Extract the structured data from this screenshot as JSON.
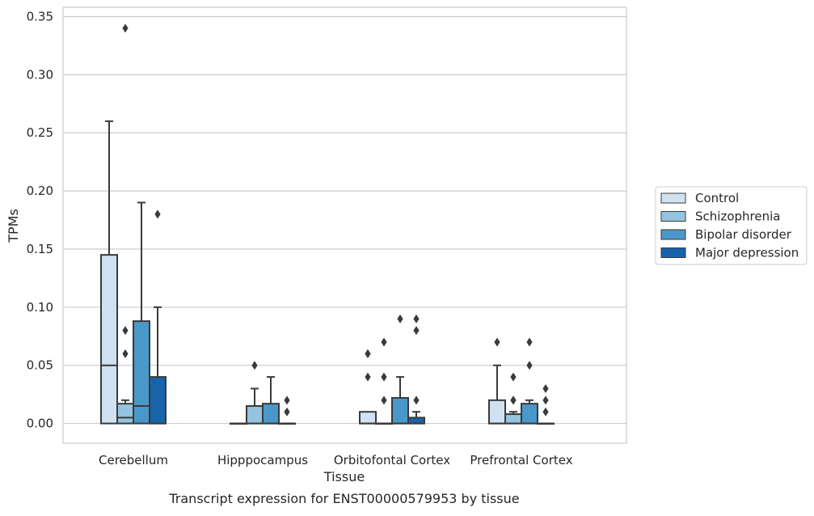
{
  "chart_data": {
    "type": "box",
    "title": "Transcript expression for ENST00000579953 by tissue",
    "xlabel": "Tissue",
    "ylabel": "TPMs",
    "ylim": [
      -0.017,
      0.358
    ],
    "yticks": [
      0.0,
      0.05,
      0.1,
      0.15,
      0.2,
      0.25,
      0.3,
      0.35
    ],
    "ytick_labels": [
      "0.00",
      "0.05",
      "0.10",
      "0.15",
      "0.20",
      "0.25",
      "0.30",
      "0.35"
    ],
    "grid": "horizontal",
    "legend_position": "right",
    "categories": [
      "Cerebellum",
      "Hipppocampus",
      "Orbitofontal Cortex",
      "Prefrontal Cortex"
    ],
    "series": [
      {
        "name": "Control",
        "color": "#d0e1f2",
        "boxes": [
          {
            "whisker_low": 0.0,
            "q1": 0.0,
            "median": 0.05,
            "q3": 0.145,
            "whisker_high": 0.26,
            "outliers": []
          },
          {
            "whisker_low": 0.0,
            "q1": 0.0,
            "median": 0.0,
            "q3": 0.0,
            "whisker_high": 0.0,
            "outliers": []
          },
          {
            "whisker_low": 0.0,
            "q1": 0.0,
            "median": 0.0,
            "q3": 0.01,
            "whisker_high": 0.01,
            "outliers": [
              0.04,
              0.06,
              0.06
            ]
          },
          {
            "whisker_low": 0.0,
            "q1": 0.0,
            "median": 0.0,
            "q3": 0.02,
            "whisker_high": 0.05,
            "outliers": [
              0.07
            ]
          }
        ]
      },
      {
        "name": "Schizophrenia",
        "color": "#94c4df",
        "boxes": [
          {
            "whisker_low": 0.0,
            "q1": 0.0,
            "median": 0.005,
            "q3": 0.017,
            "whisker_high": 0.02,
            "outliers": [
              0.06,
              0.08,
              0.34
            ]
          },
          {
            "whisker_low": 0.0,
            "q1": 0.0,
            "median": 0.0,
            "q3": 0.015,
            "whisker_high": 0.03,
            "outliers": [
              0.05
            ]
          },
          {
            "whisker_low": 0.0,
            "q1": 0.0,
            "median": 0.0,
            "q3": 0.0,
            "whisker_high": 0.0,
            "outliers": [
              0.02,
              0.04,
              0.07
            ]
          },
          {
            "whisker_low": 0.0,
            "q1": 0.0,
            "median": 0.0,
            "q3": 0.008,
            "whisker_high": 0.01,
            "outliers": [
              0.02,
              0.02,
              0.04
            ]
          }
        ]
      },
      {
        "name": "Bipolar disorder",
        "color": "#4a98c9",
        "boxes": [
          {
            "whisker_low": 0.0,
            "q1": 0.0,
            "median": 0.015,
            "q3": 0.088,
            "whisker_high": 0.19,
            "outliers": []
          },
          {
            "whisker_low": 0.0,
            "q1": 0.0,
            "median": 0.0,
            "q3": 0.017,
            "whisker_high": 0.04,
            "outliers": []
          },
          {
            "whisker_low": 0.0,
            "q1": 0.0,
            "median": 0.0,
            "q3": 0.022,
            "whisker_high": 0.04,
            "outliers": [
              0.09
            ]
          },
          {
            "whisker_low": 0.0,
            "q1": 0.0,
            "median": 0.0,
            "q3": 0.017,
            "whisker_high": 0.02,
            "outliers": [
              0.05,
              0.07
            ]
          }
        ]
      },
      {
        "name": "Major depression",
        "color": "#1764ab",
        "boxes": [
          {
            "whisker_low": 0.0,
            "q1": 0.0,
            "median": 0.0,
            "q3": 0.04,
            "whisker_high": 0.1,
            "outliers": [
              0.18
            ]
          },
          {
            "whisker_low": 0.0,
            "q1": 0.0,
            "median": 0.0,
            "q3": 0.0,
            "whisker_high": 0.0,
            "outliers": [
              0.01,
              0.02
            ]
          },
          {
            "whisker_low": 0.0,
            "q1": 0.0,
            "median": 0.0,
            "q3": 0.005,
            "whisker_high": 0.01,
            "outliers": [
              0.02,
              0.08,
              0.09
            ]
          },
          {
            "whisker_low": 0.0,
            "q1": 0.0,
            "median": 0.0,
            "q3": 0.0,
            "whisker_high": 0.0,
            "outliers": [
              0.01,
              0.02,
              0.03
            ]
          }
        ]
      }
    ]
  }
}
